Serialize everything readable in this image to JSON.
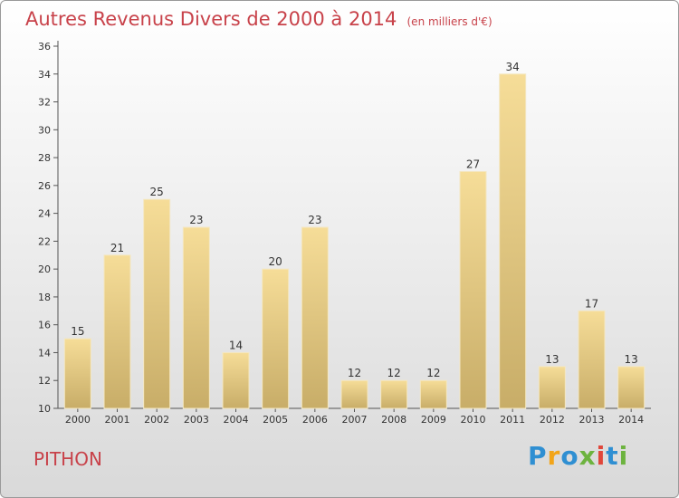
{
  "header": {
    "title": "Autres Revenus Divers de 2000 à 2014",
    "subtitle": "(en milliers d'€)"
  },
  "footer": {
    "place": "PITHON",
    "logo": {
      "text": "Proxiti",
      "letters": [
        {
          "ch": "P",
          "color": "#2f8fd2"
        },
        {
          "ch": "r",
          "color": "#f2a51a"
        },
        {
          "ch": "o",
          "color": "#2f8fd2"
        },
        {
          "ch": "x",
          "color": "#6db33f"
        },
        {
          "ch": "i",
          "color": "#e0463a"
        },
        {
          "ch": "t",
          "color": "#2f8fd2"
        },
        {
          "ch": "i",
          "color": "#6db33f"
        }
      ]
    }
  },
  "colors": {
    "bar_light": "#f6dd98",
    "bar_dark": "#c8ad68",
    "title": "#c8424a"
  },
  "chart_data": {
    "type": "bar",
    "title": "Autres Revenus Divers de 2000 à 2014",
    "subtitle": "(en milliers d'€)",
    "categories": [
      "2000",
      "2001",
      "2002",
      "2003",
      "2004",
      "2005",
      "2006",
      "2007",
      "2008",
      "2009",
      "2010",
      "2011",
      "2012",
      "2013",
      "2014"
    ],
    "values": [
      15,
      21,
      25,
      23,
      14,
      20,
      23,
      12,
      12,
      12,
      27,
      34,
      13,
      17,
      13
    ],
    "ylim": [
      10,
      36
    ],
    "yticks": [
      10,
      12,
      14,
      16,
      18,
      20,
      22,
      24,
      26,
      28,
      30,
      32,
      34,
      36
    ],
    "grid": false,
    "legend": "none",
    "data_labels": true
  }
}
